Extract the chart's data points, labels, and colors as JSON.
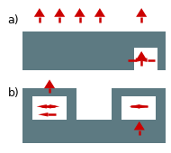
{
  "bg_color": "#ffffff",
  "gray_color": "#5d7a82",
  "white_color": "#ffffff",
  "red_color": "#cc0000",
  "label_a": "a)",
  "label_b": "b)",
  "fig_width": 1.9,
  "fig_height": 1.7,
  "dpi": 100
}
